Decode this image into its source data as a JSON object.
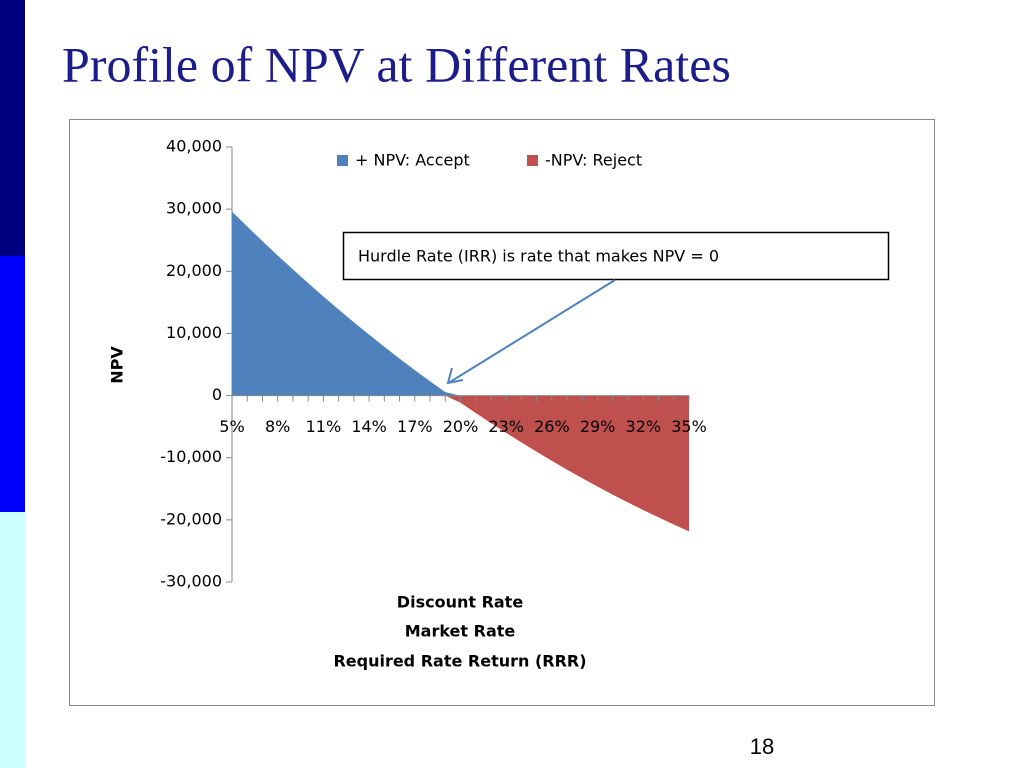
{
  "slide": {
    "title": "Profile of NPV at Different Rates",
    "page_number": "18"
  },
  "chart_data": {
    "type": "area",
    "y_label": "NPV",
    "x_label": [
      "Discount Rate",
      "Market Rate",
      "Required Rate Return (RRR)"
    ],
    "annotation": "Hurdle Rate (IRR) is rate that makes NPV = 0",
    "categories": [
      "5%",
      null,
      null,
      "8%",
      null,
      null,
      "11%",
      null,
      null,
      "14%",
      null,
      null,
      "17%",
      null,
      null,
      "20%",
      null,
      null,
      "23%",
      null,
      null,
      "26%",
      null,
      null,
      "29%",
      null,
      null,
      "32%",
      null,
      null,
      "35%"
    ],
    "series": [
      {
        "name": "+ NPV: Accept",
        "color": "#4f81bd",
        "values": [
          29600,
          27200,
          24850,
          22550,
          20300,
          18100,
          15950,
          13850,
          11800,
          9800,
          7850,
          5950,
          4100,
          2300,
          550,
          0,
          0,
          0,
          0,
          0,
          0,
          0,
          0,
          0,
          0,
          0,
          0,
          0,
          0,
          0,
          0
        ]
      },
      {
        "name": "-NPV: Reject",
        "color": "#c0504d",
        "values": [
          0,
          0,
          0,
          0,
          0,
          0,
          0,
          0,
          0,
          0,
          0,
          0,
          0,
          0,
          0,
          -1150,
          -2810,
          -4430,
          -6010,
          -7550,
          -9050,
          -10510,
          -11930,
          -13310,
          -14650,
          -15950,
          -17210,
          -18430,
          -19610,
          -20750,
          -21850
        ]
      }
    ],
    "ylim": [
      -30000,
      40000
    ],
    "yticks": [
      {
        "value": -30000,
        "label": "-30,000"
      },
      {
        "value": -20000,
        "label": "-20,000"
      },
      {
        "value": -10000,
        "label": "-10,000"
      },
      0,
      {
        "value": 10000,
        "label": "10,000"
      },
      {
        "value": 20000,
        "label": "20,000"
      },
      {
        "value": 30000,
        "label": "30,000"
      },
      {
        "value": 40000,
        "label": "40,000"
      }
    ],
    "legend": "top"
  }
}
